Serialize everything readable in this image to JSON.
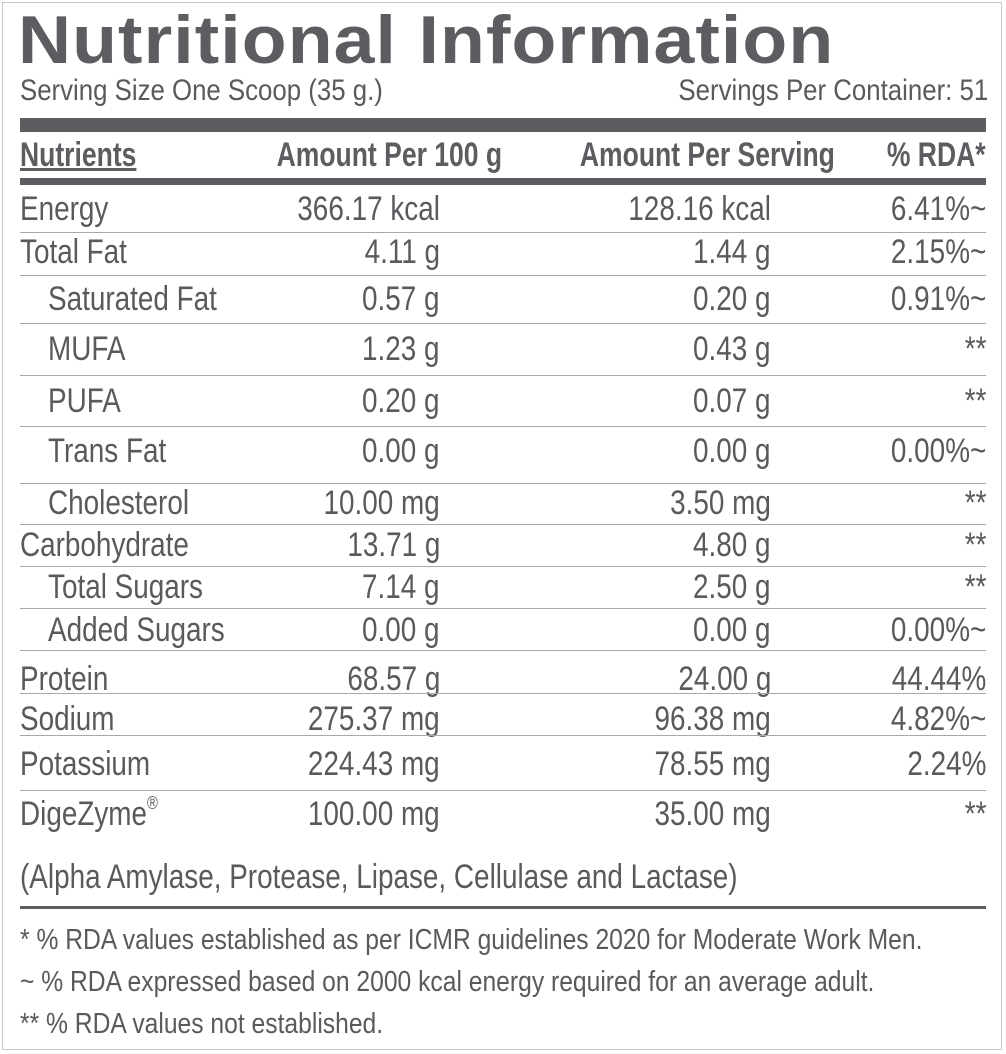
{
  "label": {
    "title": "Nutritional Information",
    "serving_size": "Serving Size One Scoop (35 g.)",
    "servings_per_container": "Servings Per Container: 51",
    "columns": [
      "Nutrients",
      "Amount Per 100 g",
      "Amount Per Serving",
      "% RDA*"
    ],
    "rows": [
      {
        "name": "Energy",
        "per100": "366.17 kcal",
        "perServing": "128.16 kcal",
        "rda": "6.41%~",
        "indent": false
      },
      {
        "name": "Total Fat",
        "per100": "4.11 g",
        "perServing": "1.44 g",
        "rda": "2.15%~",
        "indent": false
      },
      {
        "name": "Saturated Fat",
        "per100": "0.57 g",
        "perServing": "0.20 g",
        "rda": "0.91%~",
        "indent": true
      },
      {
        "name": "MUFA",
        "per100": "1.23 g",
        "perServing": "0.43 g",
        "rda": "**",
        "indent": true
      },
      {
        "name": "PUFA",
        "per100": "0.20 g",
        "perServing": "0.07 g",
        "rda": "**",
        "indent": true
      },
      {
        "name": "Trans Fat",
        "per100": "0.00 g",
        "perServing": "0.00 g",
        "rda": "0.00%~",
        "indent": true
      },
      {
        "name": "Cholesterol",
        "per100": "10.00 mg",
        "perServing": "3.50 mg",
        "rda": "**",
        "indent": true
      },
      {
        "name": "Carbohydrate",
        "per100": "13.71 g",
        "perServing": "4.80 g",
        "rda": "**",
        "indent": false
      },
      {
        "name": "Total Sugars",
        "per100": "7.14 g",
        "perServing": "2.50 g",
        "rda": "**",
        "indent": true
      },
      {
        "name": "Added Sugars",
        "per100": "0.00 g",
        "perServing": "0.00 g",
        "rda": "0.00%~",
        "indent": true
      },
      {
        "name": "Protein",
        "per100": "68.57 g",
        "perServing": "24.00 g",
        "rda": "44.44%",
        "indent": false
      },
      {
        "name": "Sodium",
        "per100": "275.37 mg",
        "perServing": "96.38 mg",
        "rda": "4.82%~",
        "indent": false
      },
      {
        "name": "Potassium",
        "per100": "224.43 mg",
        "perServing": "78.55 mg",
        "rda": "2.24%",
        "indent": false
      },
      {
        "name": "DigeZyme",
        "name_mark": "®",
        "per100": "100.00 mg",
        "perServing": "35.00 mg",
        "rda": "**",
        "indent": false
      }
    ],
    "digezyme_note": "(Alpha Amylase, Protease, Lipase, Cellulase and Lactase)",
    "footnotes": [
      "* % RDA values established as per ICMR guidelines 2020 for Moderate Work Men.",
      "~ % RDA expressed based on 2000 kcal energy required for an average adult.",
      "** % RDA values not established."
    ],
    "colors": {
      "text": "#5a5a5e",
      "bar": "#5d5d61",
      "rule": "#a8a8a8"
    }
  }
}
